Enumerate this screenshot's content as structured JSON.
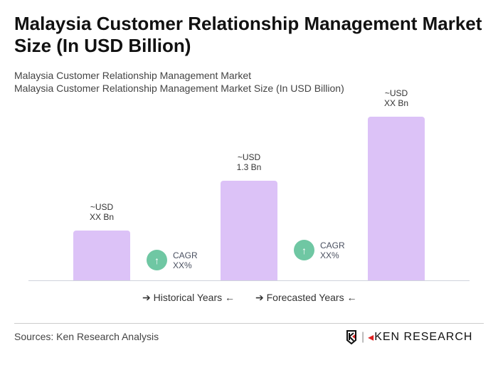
{
  "title": "Malaysia Customer Relationship Management Market Size (In USD Billion)",
  "subtitle1": "Malaysia Customer Relationship Management Market",
  "subtitle2": "Malaysia Customer Relationship Management Market Size (In USD Billion)",
  "chart_data": {
    "type": "bar",
    "values": [
      0.65,
      1.3,
      2.14
    ],
    "bar_labels": [
      [
        "~USD",
        "XX Bn"
      ],
      [
        "~USD",
        "1.3 Bn"
      ],
      [
        "~USD",
        "XX Bn"
      ]
    ],
    "cagr": [
      {
        "label": "CAGR",
        "value": "XX%"
      },
      {
        "label": "CAGR",
        "value": "XX%"
      }
    ],
    "legend": [
      {
        "name": "Historical Years"
      },
      {
        "name": "Forecasted Years"
      }
    ],
    "bar_color": "#dcc2f7",
    "cagr_color": "#6fc7a3"
  },
  "sources": "Sources: Ken Research Analysis",
  "logo": "KEN RESEARCH"
}
